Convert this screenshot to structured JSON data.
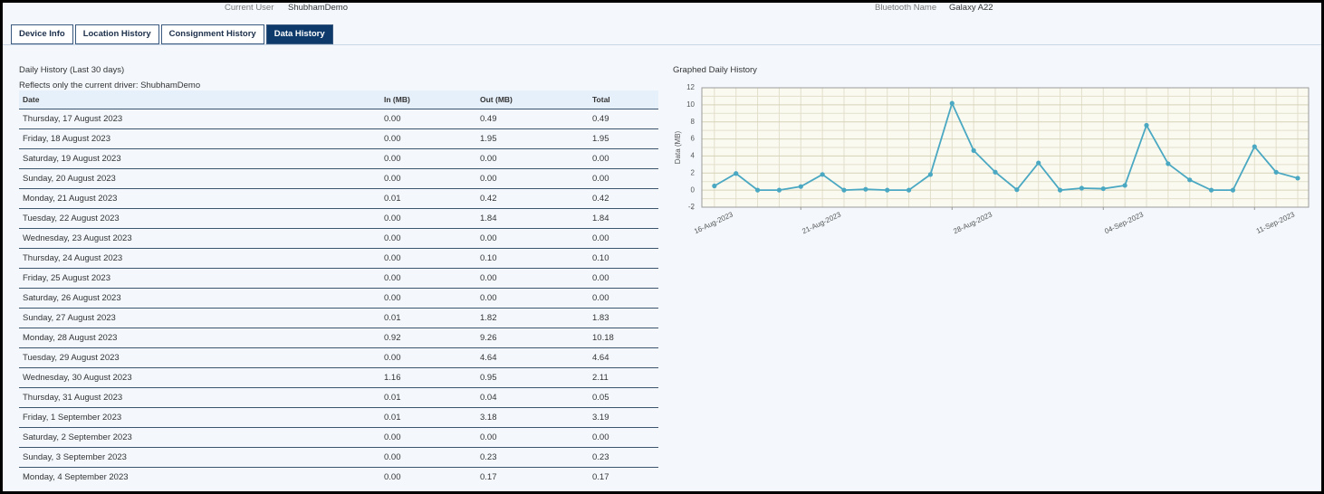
{
  "header": {
    "user_label": "Current User",
    "user_value": "ShubhamDemo",
    "bt_label": "Bluetooth Name",
    "bt_value": "Galaxy A22"
  },
  "tabs": [
    "Device Info",
    "Location History",
    "Consignment History",
    "Data History"
  ],
  "table_title": "Daily History (Last 30 days)",
  "table_note": "Reflects only the current driver: ShubhamDemo",
  "table": {
    "columns": [
      "Date",
      "In (MB)",
      "Out (MB)",
      "Total"
    ],
    "rows": [
      [
        "Thursday, 17 August 2023",
        "0.00",
        "0.49",
        "0.49"
      ],
      [
        "Friday, 18 August 2023",
        "0.00",
        "1.95",
        "1.95"
      ],
      [
        "Saturday, 19 August 2023",
        "0.00",
        "0.00",
        "0.00"
      ],
      [
        "Sunday, 20 August 2023",
        "0.00",
        "0.00",
        "0.00"
      ],
      [
        "Monday, 21 August 2023",
        "0.01",
        "0.42",
        "0.42"
      ],
      [
        "Tuesday, 22 August 2023",
        "0.00",
        "1.84",
        "1.84"
      ],
      [
        "Wednesday, 23 August 2023",
        "0.00",
        "0.00",
        "0.00"
      ],
      [
        "Thursday, 24 August 2023",
        "0.00",
        "0.10",
        "0.10"
      ],
      [
        "Friday, 25 August 2023",
        "0.00",
        "0.00",
        "0.00"
      ],
      [
        "Saturday, 26 August 2023",
        "0.00",
        "0.00",
        "0.00"
      ],
      [
        "Sunday, 27 August 2023",
        "0.01",
        "1.82",
        "1.83"
      ],
      [
        "Monday, 28 August 2023",
        "0.92",
        "9.26",
        "10.18"
      ],
      [
        "Tuesday, 29 August 2023",
        "0.00",
        "4.64",
        "4.64"
      ],
      [
        "Wednesday, 30 August 2023",
        "1.16",
        "0.95",
        "2.11"
      ],
      [
        "Thursday, 31 August 2023",
        "0.01",
        "0.04",
        "0.05"
      ],
      [
        "Friday, 1 September 2023",
        "0.01",
        "3.18",
        "3.19"
      ],
      [
        "Saturday, 2 September 2023",
        "0.00",
        "0.00",
        "0.00"
      ],
      [
        "Sunday, 3 September 2023",
        "0.00",
        "0.23",
        "0.23"
      ],
      [
        "Monday, 4 September 2023",
        "0.00",
        "0.17",
        "0.17"
      ]
    ]
  },
  "chart_data": {
    "type": "line",
    "title": "Graphed Daily History",
    "y_label": "Data (MB)",
    "x": [
      "2023-08-17",
      "2023-08-18",
      "2023-08-19",
      "2023-08-20",
      "2023-08-21",
      "2023-08-22",
      "2023-08-23",
      "2023-08-24",
      "2023-08-25",
      "2023-08-26",
      "2023-08-27",
      "2023-08-28",
      "2023-08-29",
      "2023-08-30",
      "2023-08-31",
      "2023-09-01",
      "2023-09-02",
      "2023-09-03",
      "2023-09-04",
      "2023-09-05",
      "2023-09-06",
      "2023-09-07",
      "2023-09-08",
      "2023-09-09",
      "2023-09-10",
      "2023-09-11",
      "2023-09-12",
      "2023-09-13"
    ],
    "series": [
      {
        "name": "Total",
        "color": "#4aa8c2",
        "values": [
          0.49,
          1.95,
          0,
          0,
          0.42,
          1.84,
          0,
          0.1,
          0,
          0,
          1.83,
          10.18,
          4.64,
          2.11,
          0.05,
          3.19,
          0,
          0.23,
          0.17,
          0.55,
          7.6,
          3.1,
          1.2,
          0,
          0,
          5.1,
          2.1,
          1.4
        ]
      }
    ],
    "xlim": [
      "2023-08-16",
      "2023-09-13"
    ],
    "xticks": [
      {
        "value": "2023-08-16",
        "label": "16-Aug-2023"
      },
      {
        "value": "2023-08-21",
        "label": "21-Aug-2023"
      },
      {
        "value": "2023-08-28",
        "label": "28-Aug-2023"
      },
      {
        "value": "2023-09-04",
        "label": "04-Sep-2023"
      },
      {
        "value": "2023-09-11",
        "label": "11-Sep-2023"
      }
    ],
    "ylim": [
      -2,
      12
    ],
    "yticks": [
      -2,
      0,
      2,
      4,
      6,
      8,
      10,
      12
    ],
    "grid": true
  }
}
